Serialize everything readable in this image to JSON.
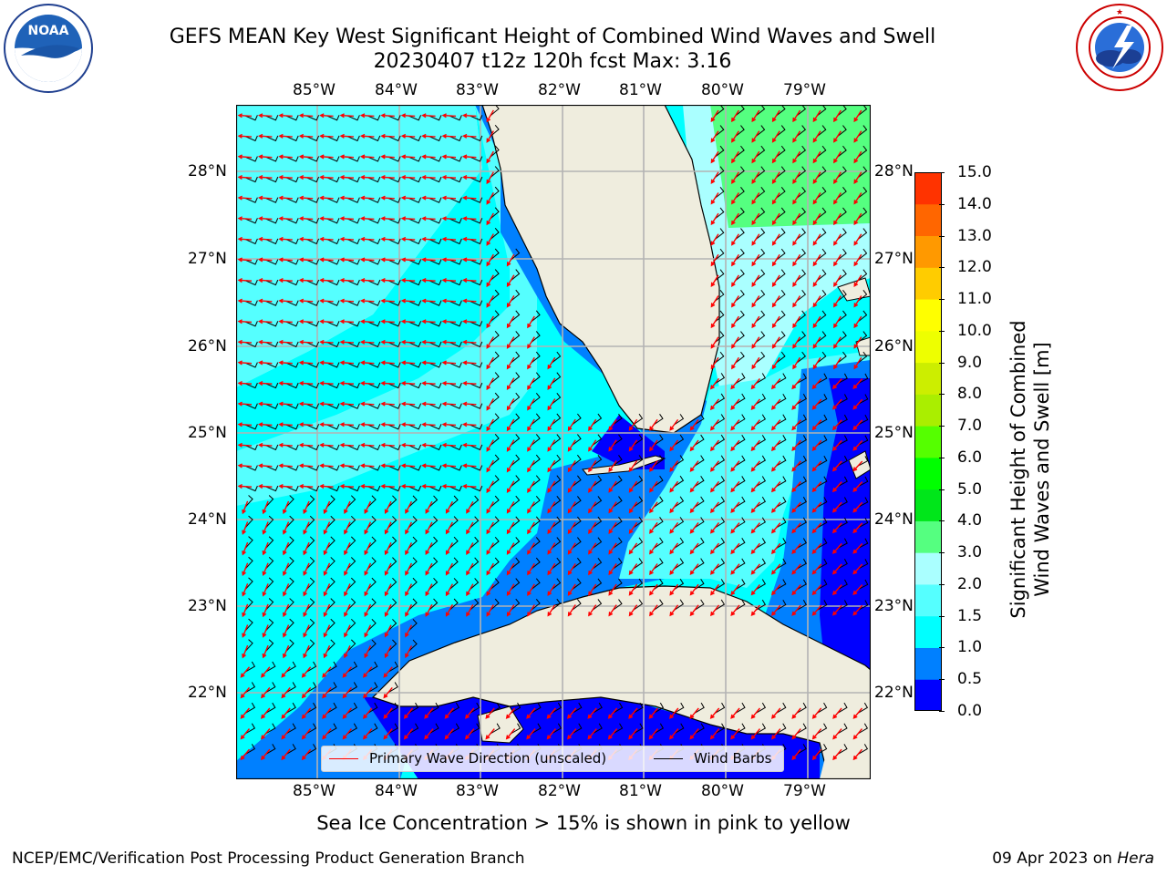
{
  "header": {
    "title_line1": "GEFS MEAN Key West Significant Height of Combined Wind Waves and Swell",
    "title_line2": "20230407 t12z 120h fcst   Max: 3.16"
  },
  "logos": {
    "noaa": {
      "text": "NOAA",
      "ring_text": "NATIONAL OCEANIC AND ATMOSPHERIC ADMINISTRATION · U.S. DEPARTMENT OF COMMERCE"
    },
    "nws": {
      "ring_text": "NATIONAL WEATHER SERVICE"
    }
  },
  "map": {
    "lon_labels": [
      "85°W",
      "84°W",
      "83°W",
      "82°W",
      "81°W",
      "80°W",
      "79°W"
    ],
    "lat_labels": [
      "28°N",
      "27°N",
      "26°N",
      "25°N",
      "24°N",
      "23°N",
      "22°N"
    ],
    "colors": {
      "land": "#efedde",
      "ocean_low": "#0000ff",
      "ocean_1": "#0080ff",
      "ocean_2": "#00ffff",
      "ocean_3": "#55ffff",
      "ocean_4": "#aaffff",
      "ocean_5": "#55ff80",
      "grid": "#b3b3b3",
      "arrow": "#ff0000",
      "barb": "#000000"
    }
  },
  "legend": {
    "primary_wave": "Primary Wave Direction (unscaled)",
    "wind_barbs": "Wind Barbs",
    "primary_color": "#ff0000",
    "barb_color": "#000000"
  },
  "colorbar": {
    "label_line1": "Significant Height of Combined",
    "label_line2": "Wind Waves and Swell [m]",
    "ticks": [
      "0.0",
      "0.5",
      "1.0",
      "1.5",
      "2.0",
      "3.0",
      "4.0",
      "5.0",
      "6.0",
      "7.0",
      "8.0",
      "9.0",
      "10.0",
      "11.0",
      "12.0",
      "13.0",
      "14.0",
      "15.0"
    ],
    "colors": [
      "#0000ff",
      "#0080ff",
      "#00ffff",
      "#55ffff",
      "#aaffff",
      "#55ff80",
      "#00e61a",
      "#00ff00",
      "#55ff00",
      "#aaee00",
      "#ccee00",
      "#eeff00",
      "#ffff00",
      "#ffcc00",
      "#ff9900",
      "#ff6600",
      "#ff3300",
      "#ff0000"
    ]
  },
  "footer": {
    "note": "Sea Ice Concentration > 15% is shown in pink to yellow",
    "credit": "NCEP/EMC/Verification Post Processing Product Generation Branch",
    "date": "09 Apr 2023 on",
    "machine": "Hera"
  }
}
